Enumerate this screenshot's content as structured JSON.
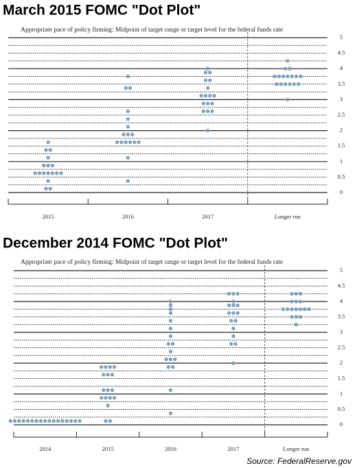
{
  "chart_data": [
    {
      "type": "dot",
      "title": "March 2015 FOMC \"Dot Plot\"",
      "subtitle": "Appropriate pace of policy firming: Midpoint of target range or target level for the federal funds rate",
      "categories": [
        "2015",
        "2016",
        "2017",
        "Longer run"
      ],
      "values": [
        [
          0.125,
          0.125,
          0.375,
          0.625,
          0.625,
          0.625,
          0.625,
          0.625,
          0.625,
          0.625,
          0.875,
          0.875,
          0.875,
          1.125,
          1.375,
          1.375,
          1.625
        ],
        [
          0.375,
          1.125,
          1.625,
          1.625,
          1.625,
          1.625,
          1.625,
          1.625,
          1.875,
          1.875,
          1.875,
          2.125,
          2.375,
          2.625,
          3.375,
          3.375,
          3.75
        ],
        [
          2.0,
          2.625,
          2.625,
          2.625,
          2.875,
          2.875,
          2.875,
          3.125,
          3.125,
          3.125,
          3.125,
          3.375,
          3.625,
          3.625,
          3.875,
          3.875,
          4.0
        ],
        [
          3.0,
          3.5,
          3.5,
          3.5,
          3.5,
          3.5,
          3.5,
          3.75,
          3.75,
          3.75,
          3.75,
          3.75,
          3.75,
          3.75,
          4.0,
          4.0,
          4.25
        ]
      ],
      "color": "#7ea3be",
      "ylim": [
        0,
        5
      ],
      "yticks": [
        0,
        0.5,
        1,
        1.5,
        2,
        2.5,
        3,
        3.5,
        4,
        4.5,
        5
      ],
      "minor_yticks": [
        0.25,
        0.75,
        1.25,
        1.75,
        2.25,
        2.75,
        3.25,
        3.75,
        4.25,
        4.75
      ]
    },
    {
      "type": "dot",
      "title": "December 2014 FOMC \"Dot Plot\"",
      "subtitle": "Appropriate pace of policy firming: Midpoint of target range or target level for the federal funds rate",
      "categories": [
        "2014",
        "2015",
        "2016",
        "2017",
        "Longer run"
      ],
      "values": [
        [
          0.125,
          0.125,
          0.125,
          0.125,
          0.125,
          0.125,
          0.125,
          0.125,
          0.125,
          0.125,
          0.125,
          0.125,
          0.125,
          0.125,
          0.125,
          0.125,
          0.125
        ],
        [
          0.125,
          0.125,
          0.625,
          0.875,
          0.875,
          0.875,
          0.875,
          1.125,
          1.125,
          1.125,
          1.625,
          1.625,
          1.625,
          1.875,
          1.875,
          1.875,
          1.875
        ],
        [
          0.375,
          1.125,
          1.875,
          1.875,
          2.125,
          2.125,
          2.125,
          2.375,
          2.625,
          2.625,
          2.875,
          3.125,
          3.375,
          3.625,
          3.75,
          3.875,
          4.0
        ],
        [
          2.0,
          2.625,
          2.625,
          2.875,
          3.125,
          3.375,
          3.375,
          3.625,
          3.625,
          3.625,
          3.875,
          3.875,
          3.875,
          4.0,
          4.25,
          4.25,
          4.25
        ],
        [
          3.25,
          3.5,
          3.5,
          3.5,
          3.75,
          3.75,
          3.75,
          3.75,
          3.75,
          3.75,
          3.75,
          4.0,
          4.0,
          4.0,
          4.25,
          4.25,
          4.25
        ]
      ],
      "color": "#7ea3be",
      "ylim": [
        0,
        5
      ],
      "yticks": [
        0,
        0.5,
        1,
        1.5,
        2,
        2.5,
        3,
        3.5,
        4,
        4.5,
        5
      ],
      "minor_yticks": [
        0.25,
        0.75,
        1.25,
        1.75,
        2.25,
        2.75,
        3.25,
        3.75,
        4.25,
        4.75
      ]
    }
  ],
  "source": "Source: FederalReserve.gov"
}
